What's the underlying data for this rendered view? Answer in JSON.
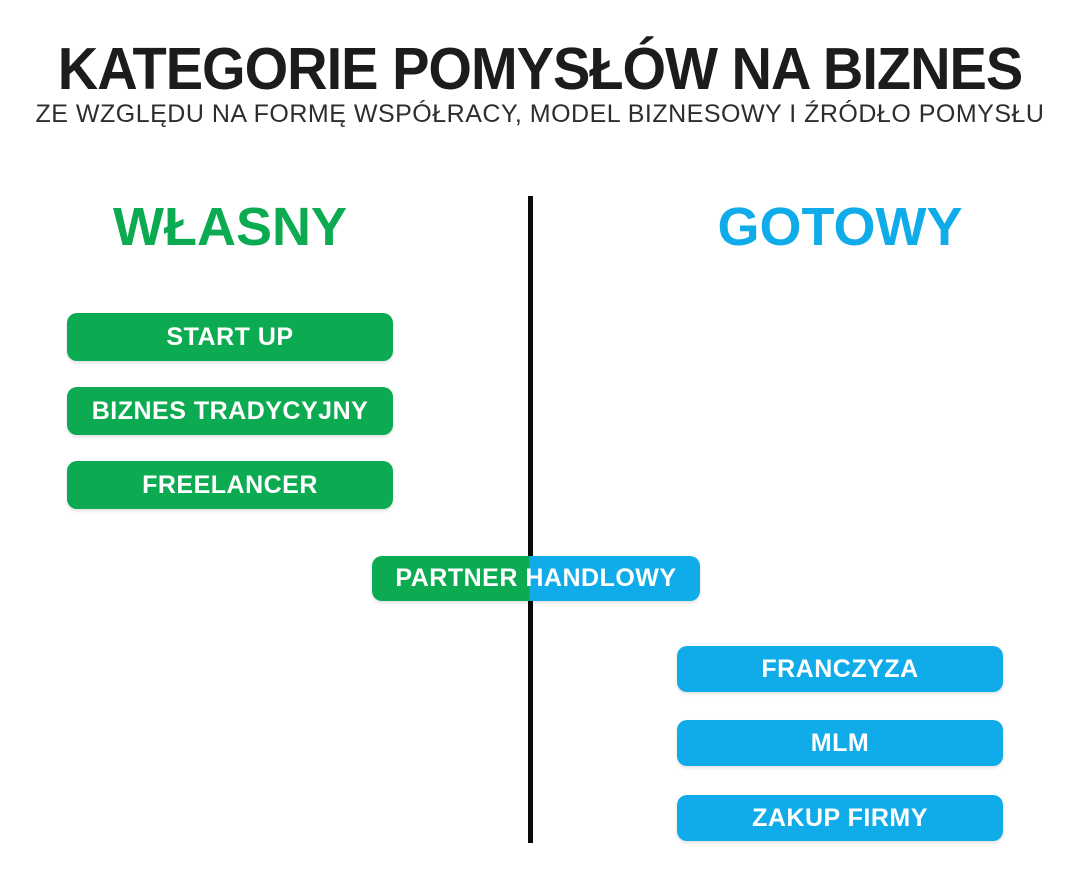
{
  "header": {
    "title": "KATEGORIE POMYSŁÓW NA BIZNES",
    "subtitle": "ZE WZGLĘDU NA FORMĘ WSPÓŁRACY, MODEL BIZNESOWY I ŹRÓDŁO POMYSŁU"
  },
  "columns": {
    "left": {
      "label": "WŁASNY",
      "items": [
        "START UP",
        "BIZNES TRADYCYJNY",
        "FREELANCER"
      ]
    },
    "right": {
      "label": "GOTOWY",
      "items": [
        "FRANCZYZA",
        "MLM",
        "ZAKUP FIRMY"
      ]
    }
  },
  "shared": {
    "label": "PARTNER HANDLOWY"
  },
  "colors": {
    "green": "#0cab51",
    "blue": "#10ace9",
    "divider": "#0a0a0a"
  }
}
